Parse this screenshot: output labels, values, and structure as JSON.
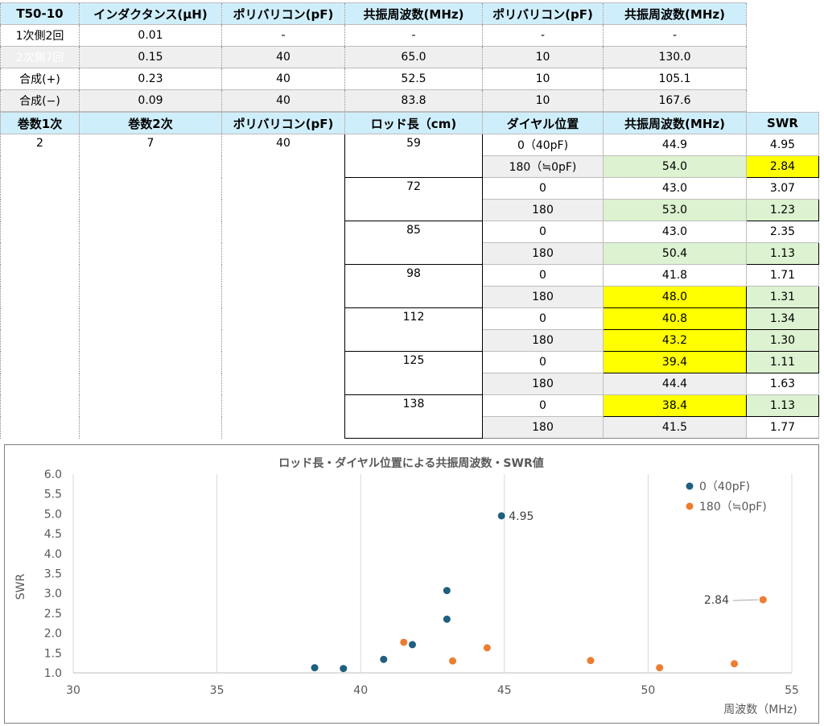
{
  "table1": {
    "headers": [
      "T50-10",
      "インダクタンス(μH)",
      "ポリバリコン(pF)",
      "共振周波数(MHz)",
      "ポリバリコン(pF)",
      "共振周波数(MHz)"
    ],
    "rows": [
      [
        "1次側2回",
        "0.01",
        "-",
        "-",
        "-",
        "-"
      ],
      [
        "2次側7回",
        "0.15",
        "40",
        "65.0",
        "10",
        "130.0"
      ],
      [
        "合成(+)",
        "0.23",
        "40",
        "52.5",
        "10",
        "105.1"
      ],
      [
        "合成(−)",
        "0.09",
        "40",
        "83.8",
        "10",
        "167.6"
      ]
    ]
  },
  "table2": {
    "headers": [
      "巻数1次",
      "巻数2次",
      "ポリバリコン(pF)",
      "ロッド長（cm)",
      "ダイヤル位置",
      "共振周波数(MHz)",
      "SWR"
    ],
    "turns1": "2",
    "turns2": "7",
    "capacitance": "40",
    "groups": [
      {
        "rod": "59",
        "rows": [
          {
            "dial": "0（40pF)",
            "freq": "44.9",
            "swr": "4.95",
            "freq_hl": "",
            "swr_hl": ""
          },
          {
            "dial": "180（≒0pF)",
            "freq": "54.0",
            "swr": "2.84",
            "freq_hl": "gr",
            "swr_hl": "y"
          }
        ]
      },
      {
        "rod": "72",
        "rows": [
          {
            "dial": "0",
            "freq": "43.0",
            "swr": "3.07",
            "freq_hl": "",
            "swr_hl": ""
          },
          {
            "dial": "180",
            "freq": "53.0",
            "swr": "1.23",
            "freq_hl": "gr",
            "swr_hl": "gr"
          }
        ]
      },
      {
        "rod": "85",
        "rows": [
          {
            "dial": "0",
            "freq": "43.0",
            "swr": "2.35",
            "freq_hl": "",
            "swr_hl": ""
          },
          {
            "dial": "180",
            "freq": "50.4",
            "swr": "1.13",
            "freq_hl": "gr",
            "swr_hl": "gr"
          }
        ]
      },
      {
        "rod": "98",
        "rows": [
          {
            "dial": "0",
            "freq": "41.8",
            "swr": "1.71",
            "freq_hl": "",
            "swr_hl": ""
          },
          {
            "dial": "180",
            "freq": "48.0",
            "swr": "1.31",
            "freq_hl": "y",
            "swr_hl": "gr"
          }
        ]
      },
      {
        "rod": "112",
        "rows": [
          {
            "dial": "0",
            "freq": "40.8",
            "swr": "1.34",
            "freq_hl": "y",
            "swr_hl": "gr"
          },
          {
            "dial": "180",
            "freq": "43.2",
            "swr": "1.30",
            "freq_hl": "y",
            "swr_hl": "gr"
          }
        ]
      },
      {
        "rod": "125",
        "rows": [
          {
            "dial": "0",
            "freq": "39.4",
            "swr": "1.11",
            "freq_hl": "y",
            "swr_hl": "gr"
          },
          {
            "dial": "180",
            "freq": "44.4",
            "swr": "1.63",
            "freq_hl": "",
            "swr_hl": ""
          }
        ]
      },
      {
        "rod": "138",
        "rows": [
          {
            "dial": "0",
            "freq": "38.4",
            "swr": "1.13",
            "freq_hl": "y",
            "swr_hl": "gr"
          },
          {
            "dial": "180",
            "freq": "41.5",
            "swr": "1.77",
            "freq_hl": "",
            "swr_hl": ""
          }
        ]
      }
    ]
  },
  "colors": {
    "header_bg": "#cfeefb",
    "highlight_yellow": "#ffff00",
    "highlight_green": "#dcf2d0",
    "series_dial0": "#1f5f7f",
    "series_dial180": "#ed7d31"
  },
  "chart_data": {
    "type": "scatter",
    "title": "ロッド長・ダイヤル位置による共振周波数・SWR値",
    "xlabel": "周波数（MHz)",
    "ylabel": "SWR",
    "xlim": [
      30,
      55
    ],
    "ylim": [
      1.0,
      6.0
    ],
    "xticks": [
      "30",
      "35",
      "40",
      "45",
      "50",
      "55"
    ],
    "yticks": [
      "1.0",
      "1.5",
      "2.0",
      "2.5",
      "3.0",
      "3.5",
      "4.0",
      "4.5",
      "5.0",
      "5.5",
      "6.0"
    ],
    "grid": "vertical",
    "legend": "top-right",
    "series": [
      {
        "name": "0（40pF)",
        "color": "#1f5f7f",
        "points": [
          [
            44.9,
            4.95
          ],
          [
            43.0,
            3.07
          ],
          [
            43.0,
            2.35
          ],
          [
            41.8,
            1.71
          ],
          [
            40.8,
            1.34
          ],
          [
            39.4,
            1.11
          ],
          [
            38.4,
            1.13
          ]
        ]
      },
      {
        "name": "180（≒0pF)",
        "color": "#ed7d31",
        "points": [
          [
            54.0,
            2.84
          ],
          [
            53.0,
            1.23
          ],
          [
            50.4,
            1.13
          ],
          [
            48.0,
            1.31
          ],
          [
            43.2,
            1.3
          ],
          [
            44.4,
            1.63
          ],
          [
            41.5,
            1.77
          ]
        ]
      }
    ],
    "annotations": [
      {
        "text": "4.95",
        "x": 44.9,
        "y": 4.95
      },
      {
        "text": "2.84",
        "x": 54.0,
        "y": 2.84
      }
    ]
  }
}
